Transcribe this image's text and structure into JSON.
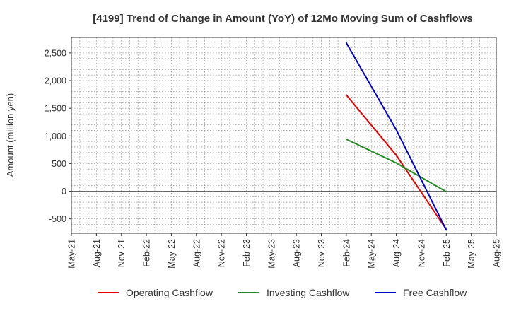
{
  "chart_data": {
    "type": "line",
    "title": "[4199]  Trend of Change in Amount (YoY) of 12Mo Moving Sum of Cashflows",
    "xlabel": "",
    "ylabel": "Amount (million yen)",
    "ylim": [
      -760,
      2780
    ],
    "yticks": [
      -500,
      0,
      500,
      1000,
      1500,
      2000,
      2500
    ],
    "ytick_labels": [
      "-500",
      "0",
      "500",
      "1,000",
      "1,500",
      "2,000",
      "2,500"
    ],
    "xtick_labels": [
      "May-21",
      "Aug-21",
      "Nov-21",
      "Feb-22",
      "May-22",
      "Aug-22",
      "Nov-22",
      "Feb-23",
      "May-23",
      "Aug-23",
      "Nov-23",
      "Feb-24",
      "May-24",
      "Aug-24",
      "Nov-24",
      "Feb-25",
      "May-25",
      "Aug-25"
    ],
    "x_categories": [
      "Feb-24",
      "May-24",
      "Aug-24",
      "Nov-24",
      "Feb-25"
    ],
    "grid": true,
    "legend_position": "bottom",
    "series": [
      {
        "name": "Operating Cashflow",
        "color": "#e60000",
        "values": [
          1740,
          null,
          650,
          null,
          -690
        ]
      },
      {
        "name": "Investing Cashflow",
        "color": "#228b22",
        "values": [
          940,
          null,
          510,
          null,
          -10
        ]
      },
      {
        "name": "Free Cashflow",
        "color": "#0000cc",
        "values": [
          2680,
          null,
          1110,
          null,
          -700
        ]
      }
    ]
  }
}
